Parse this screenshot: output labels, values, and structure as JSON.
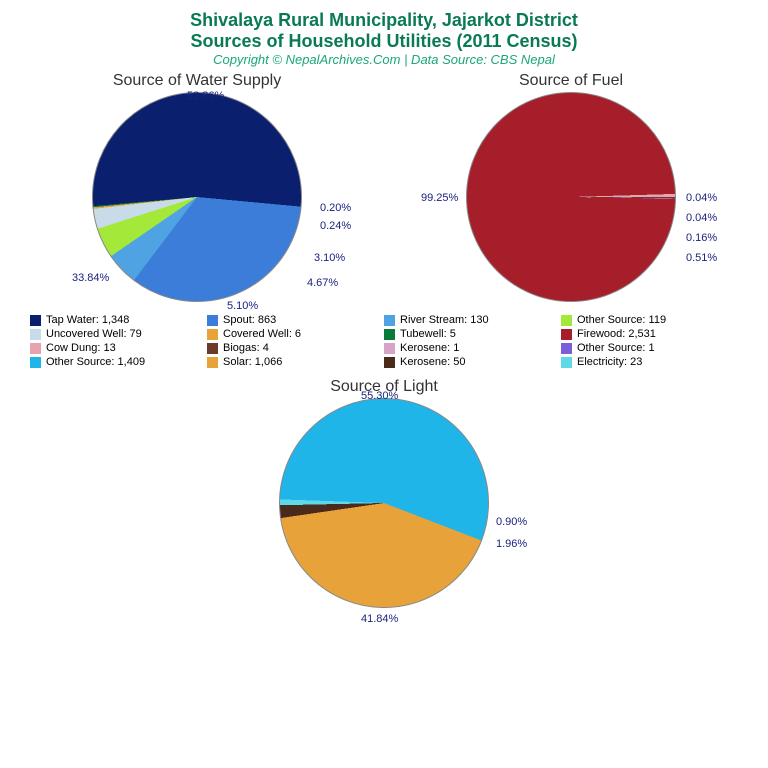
{
  "title": {
    "line1": "Shivalaya Rural Municipality, Jajarkot District",
    "line2": "Sources of Household Utilities (2011 Census)",
    "color": "#0a7a56",
    "fontsize": 18
  },
  "copyright": {
    "text": "Copyright © NepalArchives.Com | Data Source: CBS Nepal",
    "color": "#1aa874",
    "fontsize": 13
  },
  "label_color": "#1a237e",
  "charts": {
    "water": {
      "title": "Source of Water Supply",
      "diameter": 210,
      "slices": [
        {
          "label": "52.86%",
          "value": 52.86,
          "color": "#0a1f6e"
        },
        {
          "label": "33.84%",
          "value": 33.84,
          "color": "#3b7dd8"
        },
        {
          "label": "5.10%",
          "value": 5.1,
          "color": "#4fa3e3"
        },
        {
          "label": "4.67%",
          "value": 4.67,
          "color": "#a4e83a"
        },
        {
          "label": "3.10%",
          "value": 3.1,
          "color": "#c7dce8"
        },
        {
          "label": "0.24%",
          "value": 0.24,
          "color": "#e8a23a"
        },
        {
          "label": "0.20%",
          "value": 0.2,
          "color": "#0a7a3a"
        }
      ]
    },
    "fuel": {
      "title": "Source of Fuel",
      "diameter": 210,
      "slices": [
        {
          "label": "99.25%",
          "value": 99.25,
          "color": "#a61e2a"
        },
        {
          "label": "0.51%",
          "value": 0.51,
          "color": "#e8a3b0"
        },
        {
          "label": "0.16%",
          "value": 0.16,
          "color": "#6b3a2a"
        },
        {
          "label": "0.04%",
          "value": 0.04,
          "color": "#d8a3c8"
        },
        {
          "label": "0.04%",
          "value": 0.04,
          "color": "#7a5fd8"
        }
      ]
    },
    "light": {
      "title": "Source of Light",
      "diameter": 210,
      "slices": [
        {
          "label": "55.30%",
          "value": 55.3,
          "color": "#1fb5e8"
        },
        {
          "label": "41.84%",
          "value": 41.84,
          "color": "#e8a23a"
        },
        {
          "label": "1.96%",
          "value": 1.96,
          "color": "#4a2a1a"
        },
        {
          "label": "0.90%",
          "value": 0.9,
          "color": "#5fd8e8"
        }
      ]
    }
  },
  "legend": [
    {
      "name": "Tap Water: 1,348",
      "color": "#0a1f6e"
    },
    {
      "name": "Spout: 863",
      "color": "#3b7dd8"
    },
    {
      "name": "River Stream: 130",
      "color": "#4fa3e3"
    },
    {
      "name": "Other Source: 119",
      "color": "#a4e83a"
    },
    {
      "name": "Uncovered Well: 79",
      "color": "#c7dce8"
    },
    {
      "name": "Covered Well: 6",
      "color": "#e8a23a"
    },
    {
      "name": "Tubewell: 5",
      "color": "#0a7a3a"
    },
    {
      "name": "Firewood: 2,531",
      "color": "#a61e2a"
    },
    {
      "name": "Cow Dung: 13",
      "color": "#e8a3b0"
    },
    {
      "name": "Biogas: 4",
      "color": "#6b3a2a"
    },
    {
      "name": "Kerosene: 1",
      "color": "#d8a3c8"
    },
    {
      "name": "Other Source: 1",
      "color": "#7a5fd8"
    },
    {
      "name": "Other Source: 1,409",
      "color": "#1fb5e8"
    },
    {
      "name": "Solar: 1,066",
      "color": "#e8a23a"
    },
    {
      "name": "Kerosene: 50",
      "color": "#4a2a1a"
    },
    {
      "name": "Electricity: 23",
      "color": "#5fd8e8"
    }
  ]
}
